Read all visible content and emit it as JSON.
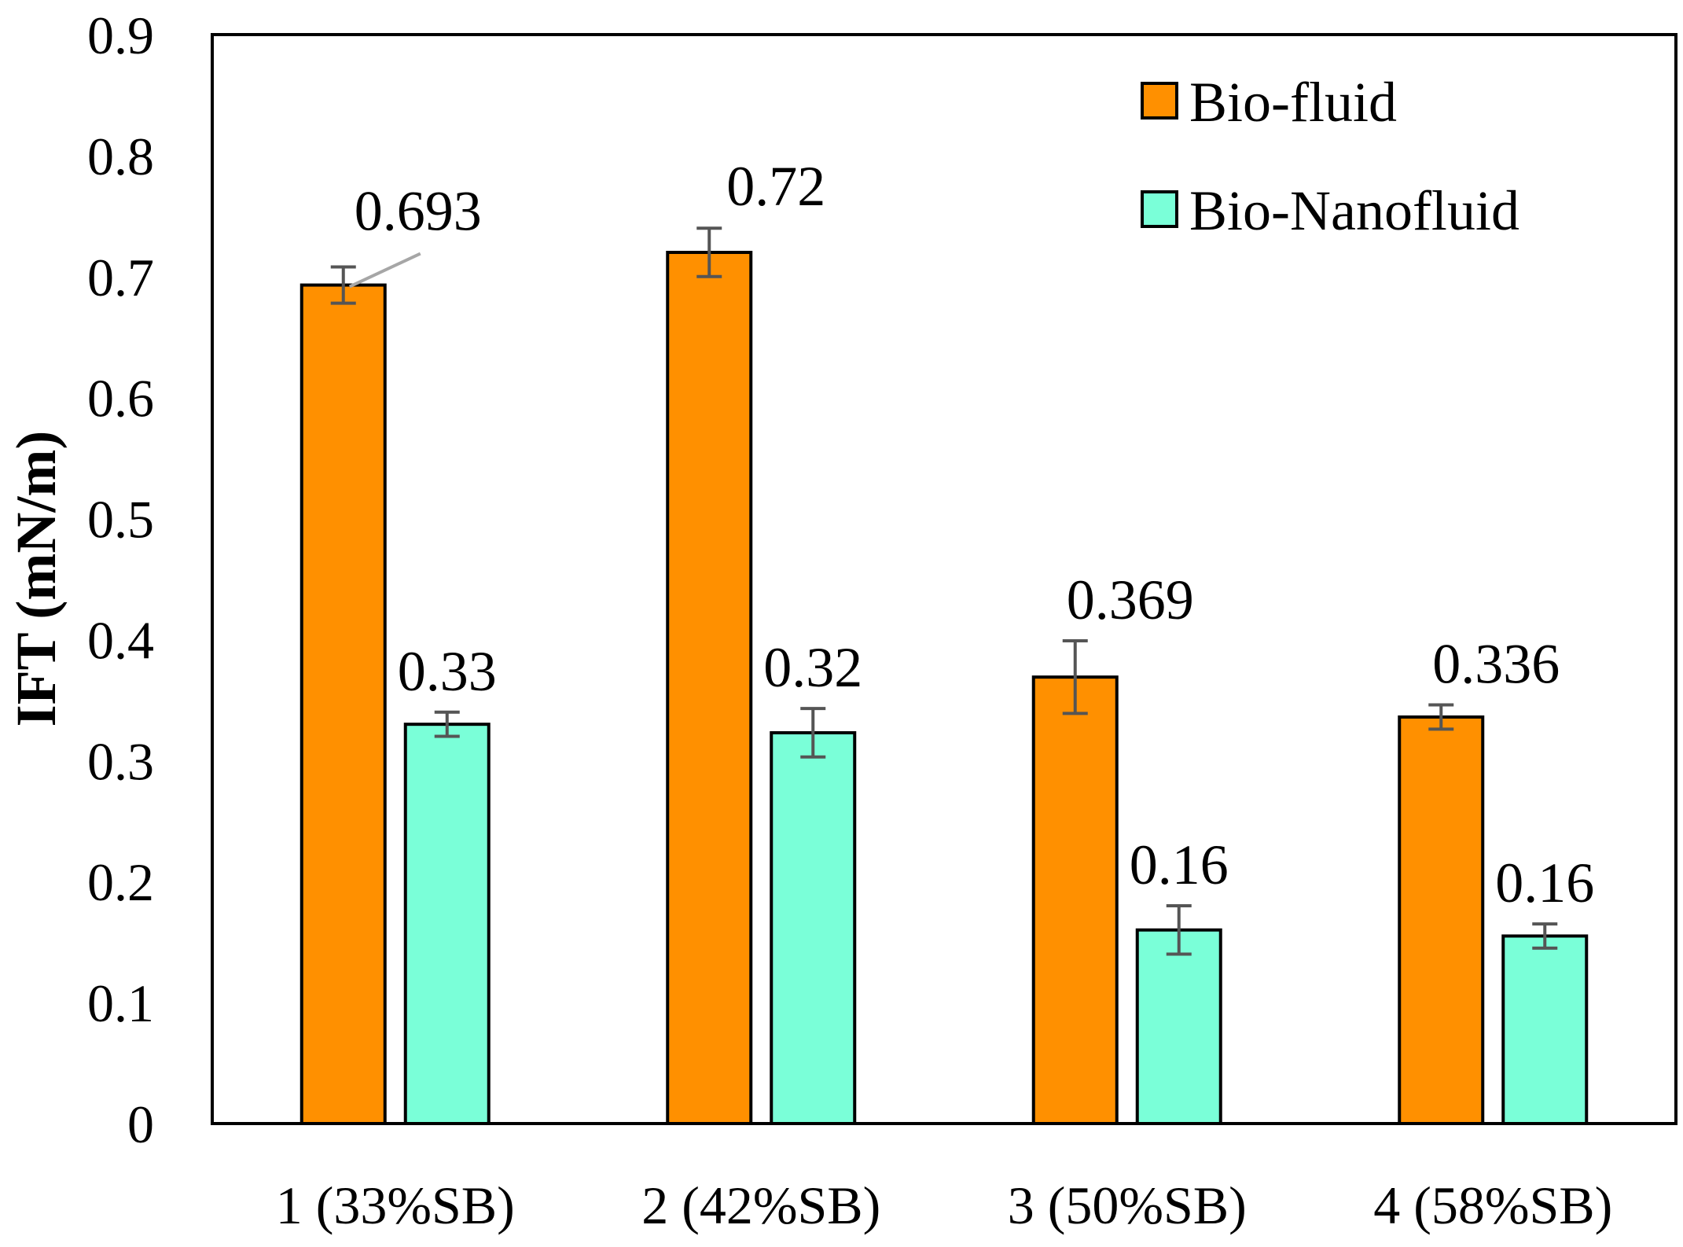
{
  "chart_data": {
    "type": "bar",
    "title": "",
    "xlabel": "",
    "ylabel": "IFT (mN/m)",
    "ylim": [
      0,
      0.9
    ],
    "yticks": [
      "0",
      "0.1",
      "0.2",
      "0.3",
      "0.4",
      "0.5",
      "0.6",
      "0.7",
      "0.8",
      "0.9"
    ],
    "categories": [
      "1 (33%SB)",
      "2 (42%SB)",
      "3 (50%SB)",
      "4 (58%SB)"
    ],
    "series": [
      {
        "name": "Bio-fluid",
        "color": "#ff9000",
        "values": [
          0.693,
          0.72,
          0.369,
          0.336
        ],
        "error": [
          0.015,
          0.02,
          0.03,
          0.01
        ],
        "labels": [
          "0.693",
          "0.72",
          "0.369",
          "0.336"
        ]
      },
      {
        "name": "Bio-Nanofluid",
        "color": "#7affd8",
        "values": [
          0.33,
          0.323,
          0.16,
          0.155
        ],
        "error": [
          0.01,
          0.02,
          0.02,
          0.01
        ],
        "labels": [
          "0.33",
          "0.32",
          "0.16",
          "0.16"
        ]
      }
    ],
    "legend_position": "top-right",
    "grid": false,
    "error_bars": true
  }
}
